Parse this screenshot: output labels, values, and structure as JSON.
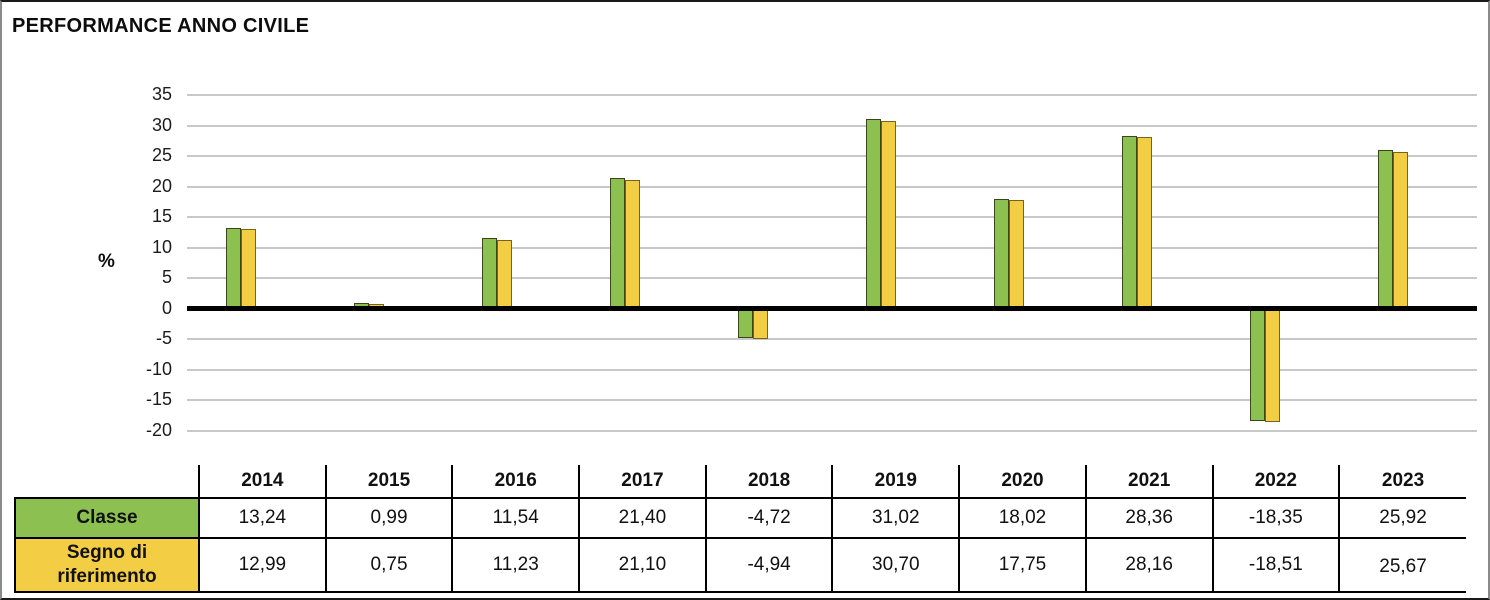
{
  "page": {
    "title": "PERFORMANCE ANNO CIVILE"
  },
  "chart_data": {
    "type": "bar",
    "title": "PERFORMANCE ANNO CIVILE",
    "ylabel": "%",
    "ylim": [
      -20,
      35
    ],
    "yticks": [
      35,
      30,
      25,
      20,
      15,
      10,
      5,
      0,
      -5,
      -10,
      -15,
      -20
    ],
    "grid": true,
    "legend_position": "table-row-headers",
    "categories": [
      "2014",
      "2015",
      "2016",
      "2017",
      "2018",
      "2019",
      "2020",
      "2021",
      "2022",
      "2023"
    ],
    "series": [
      {
        "name": "Classe",
        "color": "#8CC152",
        "border_color": "#3A451E",
        "values": [
          13.24,
          0.99,
          11.54,
          21.4,
          -4.72,
          31.02,
          18.02,
          28.36,
          -18.35,
          25.92
        ]
      },
      {
        "name": "Segno di riferimento",
        "color": "#F3CE45",
        "border_color": "#73651F",
        "values": [
          12.99,
          0.75,
          11.23,
          21.1,
          -4.94,
          30.7,
          17.75,
          28.16,
          -18.51,
          25.67
        ]
      }
    ]
  },
  "table": {
    "corner_label": "",
    "columns": [
      "2014",
      "2015",
      "2016",
      "2017",
      "2018",
      "2019",
      "2020",
      "2021",
      "2022",
      "2023"
    ],
    "rows": [
      {
        "label": "Classe",
        "bg": "#8CC152",
        "values": [
          "13,24",
          "0,99",
          "11,54",
          "21,40",
          "-4,72",
          "31,02",
          "18,02",
          "28,36",
          "-18,35",
          "25,92"
        ]
      },
      {
        "label": "Segno di riferimento",
        "bg": "#F3CE45",
        "values": [
          "12,99",
          "0,75",
          "11,23",
          "21,10",
          "-4,94",
          "30,70",
          "17,75",
          "28,16",
          "-18,51",
          "25,67"
        ]
      }
    ]
  }
}
